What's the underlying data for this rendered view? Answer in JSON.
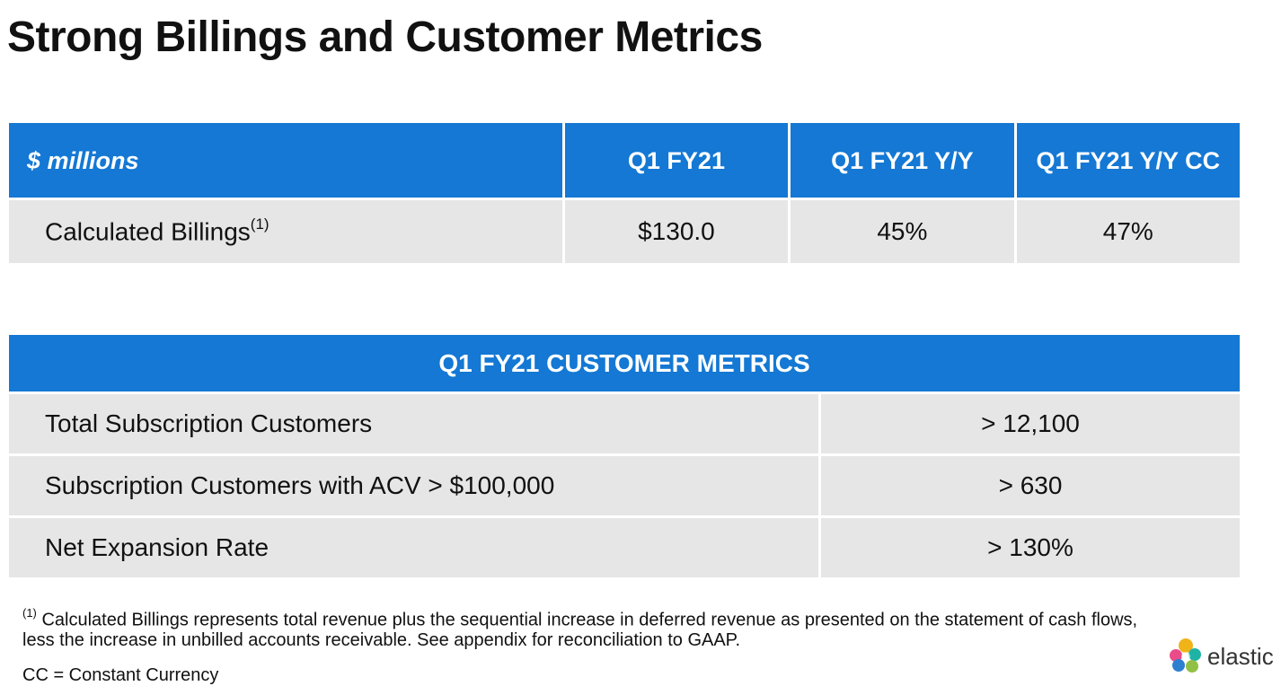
{
  "title": "Strong Billings and Customer Metrics",
  "billings_table": {
    "headers": [
      "$ millions",
      "Q1 FY21",
      "Q1 FY21 Y/Y",
      "Q1 FY21 Y/Y CC"
    ],
    "row": {
      "label": "Calculated Billings",
      "footnote_mark": "(1)",
      "values": [
        "$130.0",
        "45%",
        "47%"
      ]
    }
  },
  "customer_table": {
    "header": "Q1 FY21 CUSTOMER METRICS",
    "rows": [
      {
        "label": "Total Subscription Customers",
        "value": "> 12,100"
      },
      {
        "label": "Subscription Customers with ACV > $100,000",
        "value": "> 630"
      },
      {
        "label": "Net Expansion Rate",
        "value": "> 130%"
      }
    ]
  },
  "footnote": {
    "mark": "(1)",
    "line1": "Calculated Billings represents total revenue plus the sequential increase in deferred revenue as presented on the statement of cash flows,",
    "line2": "less the increase in unbilled accounts receivable. See appendix for reconciliation to GAAP."
  },
  "cc_note": "CC = Constant Currency",
  "logo": {
    "text": "elastic",
    "icon": "elastic-logo-icon"
  },
  "colors": {
    "header_blue": "#1478d4",
    "row_gray": "#e6e6e6"
  }
}
